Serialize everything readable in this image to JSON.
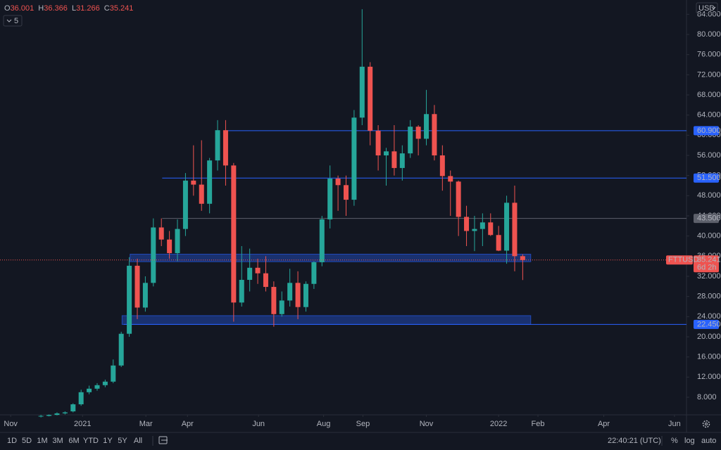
{
  "chart_data": {
    "type": "candlestick",
    "symbol": "FTTUSD",
    "currency": "USD",
    "indicator_count": 5,
    "ohlc_labels": [
      "O",
      "H",
      "L",
      "C"
    ],
    "countdown": "6d 2h",
    "up_color": "#26a69a",
    "down_color": "#ef5350",
    "grid": false,
    "open": [
      4.2,
      4.3,
      4.5,
      4.8,
      5.2,
      6.6,
      9.0,
      9.7,
      10.4,
      11.1,
      14.3,
      20.6,
      34.1,
      25.8,
      30.7,
      41.7,
      39.3,
      36.6,
      41.4,
      51.0,
      50.2,
      46.4,
      55.0,
      61.0,
      54.0,
      26.8,
      31.3,
      33.7,
      32.6,
      29.9,
      24.5,
      27.2,
      30.7,
      25.9,
      30.5,
      34.8,
      43.3,
      51.4,
      50.1,
      47.2,
      63.5,
      73.6,
      60.9,
      56.0,
      56.8,
      53.5,
      56.4,
      61.7,
      59.3,
      64.2,
      56.0,
      51.9,
      50.8,
      43.8,
      41.0,
      41.4,
      42.7,
      40.2,
      37.1,
      46.6,
      36.001
    ],
    "high": [
      4.5,
      4.6,
      5.0,
      5.2,
      6.8,
      9.5,
      10.3,
      10.8,
      11.5,
      15.5,
      21.0,
      35.8,
      35.5,
      32.0,
      43.5,
      43.5,
      41.0,
      43.3,
      52.5,
      58.0,
      59.0,
      55.5,
      63.0,
      63.0,
      54.5,
      38.0,
      37.5,
      35.5,
      36.0,
      31.0,
      29.0,
      33.5,
      33.0,
      31.0,
      35.0,
      44.0,
      54.0,
      52.0,
      52.0,
      65.0,
      85.0,
      74.5,
      62.0,
      57.5,
      62.0,
      58.0,
      63.0,
      62.0,
      69.0,
      66.0,
      58.0,
      53.0,
      51.0,
      46.0,
      44.0,
      44.5,
      44.5,
      42.0,
      48.0,
      50.0,
      36.366
    ],
    "low": [
      4.0,
      4.2,
      4.4,
      4.6,
      5.0,
      6.3,
      8.6,
      9.3,
      10.0,
      10.8,
      14.0,
      20.0,
      23.5,
      25.0,
      30.0,
      38.0,
      35.5,
      35.0,
      40.0,
      48.0,
      45.0,
      44.5,
      53.0,
      50.0,
      23.0,
      26.0,
      29.0,
      30.5,
      29.0,
      22.0,
      24.0,
      26.0,
      23.5,
      25.0,
      29.5,
      34.0,
      41.5,
      45.0,
      44.0,
      46.0,
      62.0,
      58.0,
      53.0,
      50.0,
      52.0,
      51.0,
      55.5,
      56.0,
      58.0,
      55.0,
      49.0,
      44.0,
      40.0,
      38.0,
      37.0,
      38.0,
      40.0,
      37.0,
      34.5,
      33.0,
      31.266
    ],
    "close": [
      4.3,
      4.5,
      4.8,
      5.0,
      6.6,
      9.0,
      9.7,
      10.4,
      11.1,
      14.3,
      20.6,
      34.1,
      25.8,
      30.7,
      41.7,
      39.3,
      36.6,
      41.4,
      51.0,
      50.2,
      46.4,
      55.0,
      61.0,
      54.0,
      26.8,
      31.3,
      33.7,
      32.6,
      29.9,
      24.5,
      27.2,
      30.7,
      25.9,
      30.5,
      34.8,
      43.3,
      51.4,
      50.1,
      47.2,
      63.5,
      73.6,
      60.9,
      56.0,
      56.8,
      53.5,
      56.4,
      61.7,
      59.3,
      64.2,
      56.0,
      51.9,
      50.8,
      43.8,
      41.0,
      41.4,
      42.7,
      40.2,
      37.1,
      46.6,
      36.0,
      35.241
    ],
    "xlim": [
      -5.1,
      80.4
    ],
    "xticks": [
      {
        "value": -3.77,
        "label": "Nov"
      },
      {
        "value": 5.18,
        "label": "2021"
      },
      {
        "value": 13.07,
        "label": "Mar"
      },
      {
        "value": 18.25,
        "label": "Apr"
      },
      {
        "value": 27.1,
        "label": "Jun"
      },
      {
        "value": 35.2,
        "label": "Aug"
      },
      {
        "value": 40.1,
        "label": "Sep"
      },
      {
        "value": 48.0,
        "label": "Nov"
      },
      {
        "value": 57.0,
        "label": "2022"
      },
      {
        "value": 61.9,
        "label": "Feb"
      },
      {
        "value": 70.1,
        "label": "Apr"
      },
      {
        "value": 78.9,
        "label": "Jun"
      }
    ],
    "ylim": [
      4.51,
      86.84
    ],
    "yticks": [
      {
        "value": 8,
        "label": "8.000"
      },
      {
        "value": 12,
        "label": "12.000"
      },
      {
        "value": 16,
        "label": "16.000"
      },
      {
        "value": 20,
        "label": "20.000"
      },
      {
        "value": 24,
        "label": "24.000"
      },
      {
        "value": 28,
        "label": "28.000"
      },
      {
        "value": 32,
        "label": "32.000"
      },
      {
        "value": 36,
        "label": "36.000"
      },
      {
        "value": 40,
        "label": "40.000"
      },
      {
        "value": 44,
        "label": "44.000"
      },
      {
        "value": 48,
        "label": "48.000"
      },
      {
        "value": 52,
        "label": "52.000"
      },
      {
        "value": 56,
        "label": "56.000"
      },
      {
        "value": 60,
        "label": "60.000"
      },
      {
        "value": 64,
        "label": "64.000"
      },
      {
        "value": 68,
        "label": "68.000"
      },
      {
        "value": 72,
        "label": "72.000"
      },
      {
        "value": 76,
        "label": "76.000"
      },
      {
        "value": 80,
        "label": "80.000"
      },
      {
        "value": 84,
        "label": "84.000"
      }
    ],
    "levels": [
      {
        "value": 60.9,
        "label": "60.900",
        "from": 22.98,
        "color": "#2962ff"
      },
      {
        "value": 51.5,
        "label": "51.500",
        "from": 15.1,
        "color": "#2962ff"
      },
      {
        "value": 43.5,
        "label": "43.500",
        "from": 15.1,
        "color": "#5d606b"
      },
      {
        "value": 22.45,
        "label": "22.450",
        "from": 10.3,
        "color": "#2962ff"
      }
    ],
    "zones": [
      {
        "low": 34.9,
        "high": 36.4,
        "start": 11.1,
        "end": 61.0
      },
      {
        "low": 22.45,
        "high": 24.2,
        "start": 10.1,
        "end": 61.0
      }
    ],
    "toolbar": {
      "ranges": [
        "1D",
        "5D",
        "1M",
        "3M",
        "6M",
        "YTD",
        "1Y",
        "5Y",
        "All"
      ],
      "clock": "22:40:21 (UTC)",
      "percent": "%",
      "log": "log",
      "auto": "auto"
    }
  }
}
